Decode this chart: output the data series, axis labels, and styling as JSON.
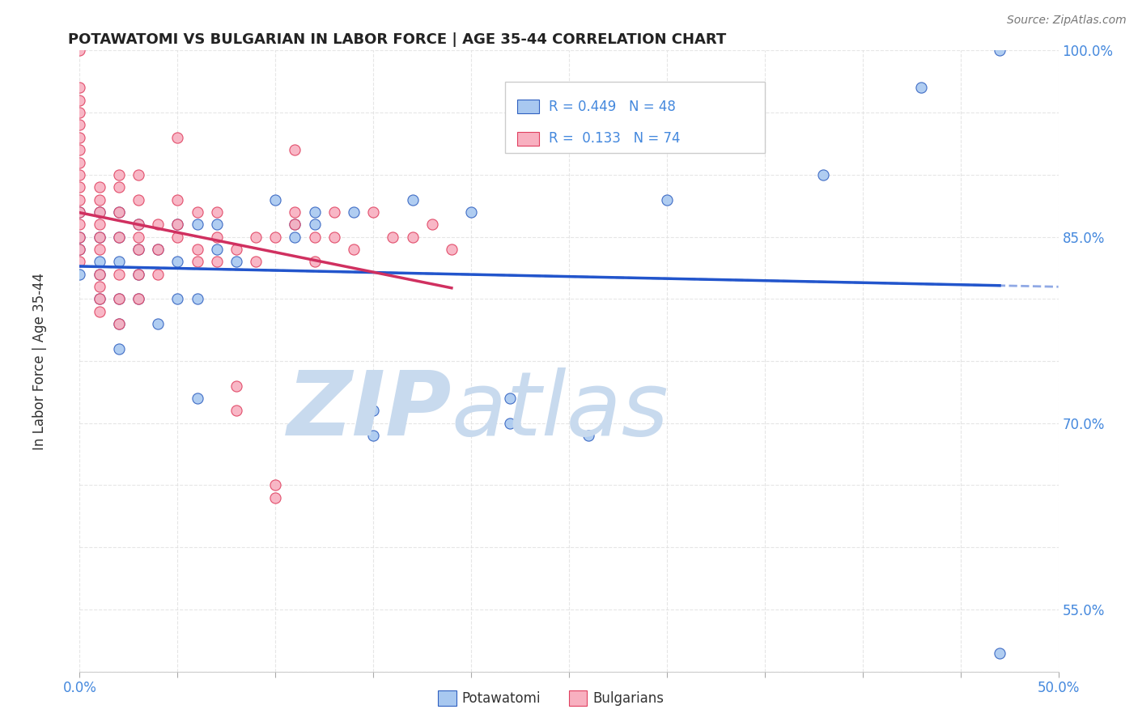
{
  "title": "POTAWATOMI VS BULGARIAN IN LABOR FORCE | AGE 35-44 CORRELATION CHART",
  "source": "Source: ZipAtlas.com",
  "ylabel": "In Labor Force | Age 35-44",
  "xlim": [
    0.0,
    0.5
  ],
  "ylim": [
    0.5,
    1.0
  ],
  "potawatomi_R": 0.449,
  "potawatomi_N": 48,
  "bulgarian_R": 0.133,
  "bulgarian_N": 74,
  "blue_fill": "#a8c8f0",
  "blue_edge": "#3060c0",
  "blue_line": "#2255cc",
  "pink_fill": "#f8b0c0",
  "pink_edge": "#e04060",
  "pink_line": "#d03060",
  "watermark_zip_color": "#c8daee",
  "watermark_atlas_color": "#c8daee",
  "grid_color": "#e0e0e0",
  "tick_label_color": "#4488dd",
  "ytick_labels_show": [
    0.55,
    0.7,
    0.85,
    1.0
  ],
  "xtick_labels_show": [
    0.0,
    0.5
  ],
  "potawatomi_x": [
    0.0,
    0.0,
    0.0,
    0.0,
    0.01,
    0.01,
    0.01,
    0.01,
    0.01,
    0.02,
    0.02,
    0.02,
    0.02,
    0.02,
    0.02,
    0.03,
    0.03,
    0.03,
    0.03,
    0.04,
    0.04,
    0.05,
    0.05,
    0.05,
    0.06,
    0.06,
    0.06,
    0.07,
    0.07,
    0.08,
    0.1,
    0.11,
    0.11,
    0.12,
    0.12,
    0.14,
    0.15,
    0.15,
    0.17,
    0.2,
    0.22,
    0.22,
    0.26,
    0.3,
    0.38,
    0.43,
    0.47,
    0.47
  ],
  "potawatomi_y": [
    0.82,
    0.84,
    0.85,
    0.87,
    0.8,
    0.82,
    0.83,
    0.85,
    0.87,
    0.76,
    0.78,
    0.8,
    0.83,
    0.85,
    0.87,
    0.8,
    0.82,
    0.84,
    0.86,
    0.78,
    0.84,
    0.8,
    0.83,
    0.86,
    0.72,
    0.8,
    0.86,
    0.84,
    0.86,
    0.83,
    0.88,
    0.85,
    0.86,
    0.86,
    0.87,
    0.87,
    0.69,
    0.71,
    0.88,
    0.87,
    0.7,
    0.72,
    0.69,
    0.88,
    0.9,
    0.97,
    0.515,
    1.0
  ],
  "bulgarian_x": [
    0.0,
    0.0,
    0.0,
    0.0,
    0.0,
    0.0,
    0.0,
    0.0,
    0.0,
    0.0,
    0.0,
    0.0,
    0.0,
    0.0,
    0.0,
    0.0,
    0.01,
    0.01,
    0.01,
    0.01,
    0.01,
    0.01,
    0.01,
    0.01,
    0.01,
    0.01,
    0.02,
    0.02,
    0.02,
    0.02,
    0.02,
    0.02,
    0.02,
    0.03,
    0.03,
    0.03,
    0.03,
    0.03,
    0.03,
    0.03,
    0.04,
    0.04,
    0.04,
    0.05,
    0.05,
    0.05,
    0.05,
    0.06,
    0.06,
    0.06,
    0.07,
    0.07,
    0.07,
    0.08,
    0.08,
    0.08,
    0.09,
    0.09,
    0.1,
    0.1,
    0.1,
    0.11,
    0.11,
    0.11,
    0.12,
    0.12,
    0.13,
    0.13,
    0.14,
    0.15,
    0.16,
    0.17,
    0.18,
    0.19
  ],
  "bulgarian_y": [
    0.83,
    0.84,
    0.85,
    0.86,
    0.87,
    0.88,
    0.89,
    0.9,
    0.91,
    0.92,
    0.93,
    0.94,
    0.95,
    0.96,
    0.97,
    1.0,
    0.79,
    0.8,
    0.81,
    0.82,
    0.84,
    0.85,
    0.86,
    0.87,
    0.88,
    0.89,
    0.78,
    0.8,
    0.82,
    0.85,
    0.87,
    0.89,
    0.9,
    0.8,
    0.82,
    0.84,
    0.85,
    0.86,
    0.88,
    0.9,
    0.82,
    0.84,
    0.86,
    0.85,
    0.86,
    0.88,
    0.93,
    0.83,
    0.84,
    0.87,
    0.83,
    0.85,
    0.87,
    0.71,
    0.73,
    0.84,
    0.83,
    0.85,
    0.64,
    0.65,
    0.85,
    0.86,
    0.87,
    0.92,
    0.83,
    0.85,
    0.85,
    0.87,
    0.84,
    0.87,
    0.85,
    0.85,
    0.86,
    0.84
  ]
}
